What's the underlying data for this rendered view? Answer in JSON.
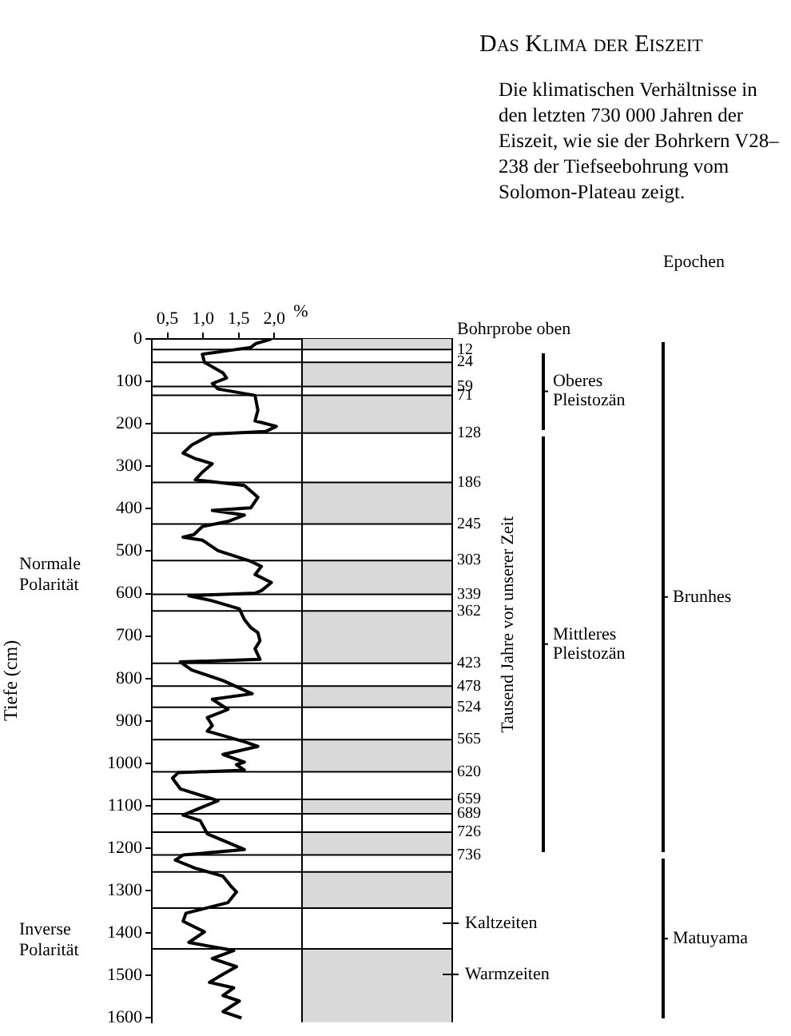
{
  "chart_data": {
    "type": "line",
    "orientation": "horizontal",
    "title": "Das Klima der Eiszeit",
    "subtitle": "Die klimatischen Verhältnisse in den letzten 730 000 Jahren der Eiszeit, wie sie der Bohrkern V28–238 der Tiefseebohrung vom Solomon-Plateau zeigt.",
    "xlabel": "%",
    "ylabel": "Tiefe (cm)",
    "y2label": "Tausend Jahre vor unserer Zeit",
    "legend_title": "Epochen",
    "xlim": [
      0.28,
      4.5
    ],
    "xticks": [
      {
        "value": 0.5,
        "label": "0,5"
      },
      {
        "value": 1.0,
        "label": "1,0"
      },
      {
        "value": 1.5,
        "label": "1,5"
      },
      {
        "value": 2.0,
        "label": "2,0"
      }
    ],
    "ylim": [
      1610,
      0
    ],
    "yticks": [
      0,
      100,
      200,
      300,
      400,
      500,
      600,
      700,
      800,
      900,
      1000,
      1100,
      1200,
      1300,
      1400,
      1500,
      1600
    ],
    "grid": false,
    "legend": false,
    "marker": "none",
    "line_style": "solid",
    "series": [
      {
        "color": "#000000",
        "x": [
          0,
          11,
          20,
          36,
          55,
          80,
          92,
          105,
          118,
          133,
          168,
          193,
          206,
          218,
          224,
          250,
          269,
          282,
          294,
          314,
          332,
          345,
          373,
          398,
          404,
          415,
          430,
          442,
          461,
          467,
          474,
          499,
          524,
          536,
          555,
          574,
          593,
          599,
          605,
          617,
          636,
          661,
          680,
          692,
          711,
          730,
          755,
          761,
          780,
          805,
          836,
          849,
          873,
          892,
          911,
          924,
          949,
          960,
          979,
          997,
          1003,
          1016,
          1022,
          1035,
          1060,
          1088,
          1103,
          1122,
          1135,
          1166,
          1203,
          1216,
          1228,
          1247,
          1266,
          1291,
          1303,
          1328,
          1353,
          1372,
          1397,
          1422,
          1441,
          1460,
          1479,
          1497,
          1516,
          1529,
          1547,
          1560,
          1585,
          1600
        ],
        "values": [
          1.96,
          1.74,
          1.67,
          0.99,
          1.02,
          1.28,
          1.33,
          1.13,
          1.21,
          1.73,
          1.77,
          1.73,
          2.03,
          1.88,
          1.13,
          0.84,
          0.72,
          0.89,
          1.13,
          0.99,
          0.89,
          1.58,
          1.77,
          1.67,
          1.13,
          1.58,
          1.35,
          0.99,
          0.87,
          0.72,
          0.99,
          1.21,
          1.67,
          1.82,
          1.73,
          1.96,
          1.82,
          1.73,
          0.8,
          1.13,
          1.51,
          1.58,
          1.67,
          1.77,
          1.8,
          1.73,
          1.8,
          0.68,
          0.84,
          1.28,
          1.69,
          1.13,
          1.35,
          1.06,
          1.13,
          1.06,
          1.58,
          1.77,
          1.28,
          1.58,
          1.47,
          1.58,
          0.65,
          0.57,
          0.68,
          1.21,
          0.99,
          0.72,
          0.96,
          1.06,
          1.58,
          0.72,
          0.61,
          0.89,
          1.28,
          1.4,
          1.47,
          1.35,
          0.76,
          0.72,
          1.02,
          0.8,
          1.43,
          1.13,
          1.47,
          1.28,
          1.09,
          1.43,
          1.28,
          1.51,
          1.28,
          1.54
        ]
      }
    ],
    "ref_lines": [
      {
        "axis": "y",
        "value": 25
      },
      {
        "axis": "y",
        "value": 55
      },
      {
        "axis": "y",
        "value": 112
      },
      {
        "axis": "y",
        "value": 133
      },
      {
        "axis": "y",
        "value": 222
      },
      {
        "axis": "y",
        "value": 338
      },
      {
        "axis": "y",
        "value": 436
      },
      {
        "axis": "y",
        "value": 522
      },
      {
        "axis": "y",
        "value": 602
      },
      {
        "axis": "y",
        "value": 641
      },
      {
        "axis": "y",
        "value": 764
      },
      {
        "axis": "y",
        "value": 818
      },
      {
        "axis": "y",
        "value": 868
      },
      {
        "axis": "y",
        "value": 944
      },
      {
        "axis": "y",
        "value": 1020
      },
      {
        "axis": "y",
        "value": 1085
      },
      {
        "axis": "y",
        "value": 1119
      },
      {
        "axis": "y",
        "value": 1162
      },
      {
        "axis": "y",
        "value": 1216
      },
      {
        "axis": "y",
        "value": 1256
      },
      {
        "axis": "y",
        "value": 1341
      },
      {
        "axis": "y",
        "value": 1437
      }
    ],
    "bands": [
      {
        "axis": "y",
        "from": 0,
        "to": 25,
        "color": "#d9d9d9"
      },
      {
        "axis": "y",
        "from": 55,
        "to": 112,
        "color": "#d9d9d9"
      },
      {
        "axis": "y",
        "from": 133,
        "to": 222,
        "color": "#d9d9d9"
      },
      {
        "axis": "y",
        "from": 338,
        "to": 436,
        "color": "#d9d9d9"
      },
      {
        "axis": "y",
        "from": 522,
        "to": 602,
        "color": "#d9d9d9"
      },
      {
        "axis": "y",
        "from": 641,
        "to": 764,
        "color": "#d9d9d9"
      },
      {
        "axis": "y",
        "from": 818,
        "to": 868,
        "color": "#d9d9d9"
      },
      {
        "axis": "y",
        "from": 944,
        "to": 1020,
        "color": "#d9d9d9"
      },
      {
        "axis": "y",
        "from": 1085,
        "to": 1119,
        "color": "#d9d9d9"
      },
      {
        "axis": "y",
        "from": 1162,
        "to": 1216,
        "color": "#d9d9d9"
      },
      {
        "axis": "y",
        "from": 1256,
        "to": 1341,
        "color": "#d9d9d9"
      },
      {
        "axis": "y",
        "from": 1437,
        "to": 1610,
        "color": "#d9d9d9"
      }
    ],
    "annotations": [
      "Bohrprobe oben",
      "12",
      "24",
      "59",
      "71",
      "128",
      "186",
      "245",
      "303",
      "339",
      "362",
      "423",
      "478",
      "524",
      "565",
      "620",
      "659",
      "689",
      "726",
      "736",
      "Normale Polarität",
      "Inverse Polarität",
      "Kaltzeiten",
      "Warmzeiten",
      "Oberes Pleistozän",
      "Mittleres Pleistozän",
      "Brunhes",
      "Matuyama"
    ]
  }
}
